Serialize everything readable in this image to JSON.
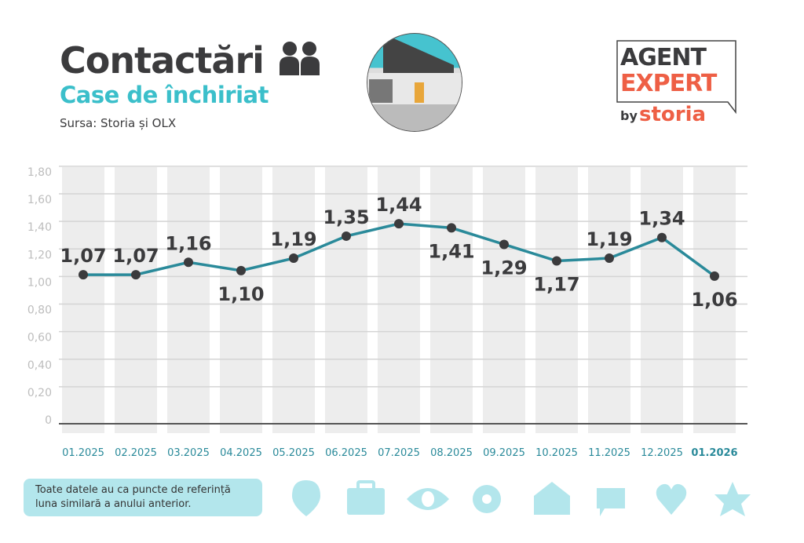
{
  "header": {
    "title": "Contactări",
    "subtitle": "Case de închiriat",
    "source": "Sursa: Storia și OLX"
  },
  "logo": {
    "line1": "AGENT",
    "line2": "EXPERT",
    "by": "by",
    "brand": "storia"
  },
  "note": {
    "line1": "Toate datele au ca puncte de referință",
    "line2": "luna similară a anului anterior."
  },
  "colors": {
    "line": "#2a8a9a",
    "accent": "#3bbfca",
    "text": "#3b3b3d",
    "band": "#ededed",
    "icon": "#b3e6ec"
  },
  "icons": [
    "location-pin-icon",
    "briefcase-icon",
    "eye-icon",
    "flower-icon",
    "house-icon",
    "chat-bubble-icon",
    "heart-icon",
    "star-icon"
  ],
  "chart_data": {
    "type": "line",
    "title": "Contactări - Case de închiriat",
    "categories": [
      "01.2025",
      "02.2025",
      "03.2025",
      "04.2025",
      "05.2025",
      "06.2025",
      "07.2025",
      "08.2025",
      "09.2025",
      "10.2025",
      "11.2025",
      "12.2025",
      "01.2026"
    ],
    "values": [
      1.07,
      1.07,
      1.16,
      1.1,
      1.19,
      1.35,
      1.44,
      1.41,
      1.29,
      1.17,
      1.19,
      1.34,
      1.06
    ],
    "labels": [
      "1,07",
      "1,07",
      "1,16",
      "1,10",
      "1,19",
      "1,35",
      "1,44",
      "1,41",
      "1,29",
      "1,17",
      "1,19",
      "1,34",
      "1,06"
    ],
    "label_pos": [
      "above",
      "above",
      "above",
      "below",
      "above",
      "above",
      "above",
      "below",
      "below",
      "below",
      "above",
      "above",
      "below"
    ],
    "yticks": [
      "0",
      "0,20",
      "0,40",
      "0,60",
      "0,80",
      "1,00",
      "1,20",
      "1,40",
      "1,60",
      "1,80"
    ],
    "ylim": [
      0,
      1.8
    ],
    "grid": true,
    "highlight_category": "01.2026"
  }
}
